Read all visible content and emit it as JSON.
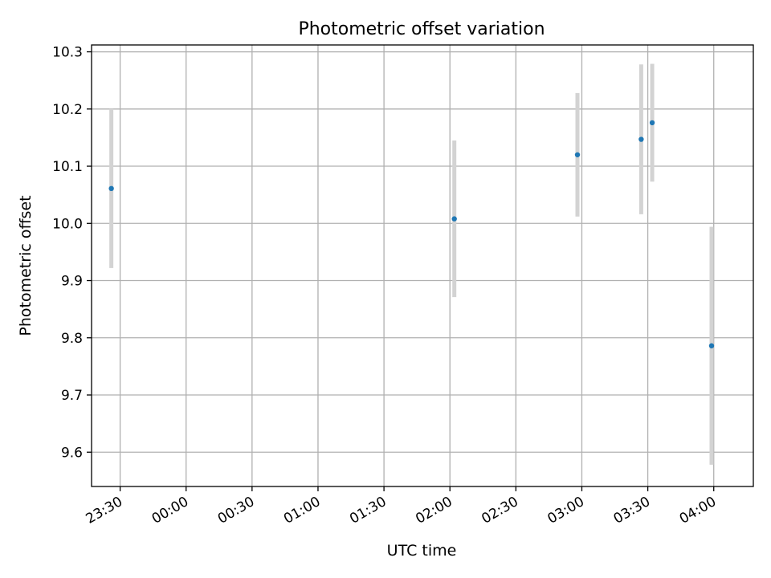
{
  "chart_data": {
    "type": "scatter",
    "title": "Photometric offset variation",
    "xlabel": "UTC time",
    "ylabel": "Photometric offset",
    "x_format": "time",
    "x_tick_labels": [
      "23:30",
      "00:00",
      "00:30",
      "01:00",
      "01:30",
      "02:00",
      "02:30",
      "03:00",
      "03:30",
      "04:00"
    ],
    "x_ticks": [
      "23:30",
      "00:00",
      "00:30",
      "01:00",
      "01:30",
      "02:00",
      "02:30",
      "03:00",
      "03:30",
      "04:00"
    ],
    "xlim": [
      "23:17",
      "04:18"
    ],
    "y_tick_labels": [
      "9.6",
      "9.7",
      "9.8",
      "9.9",
      "10.0",
      "10.1",
      "10.2",
      "10.3"
    ],
    "y_ticks": [
      9.6,
      9.7,
      9.8,
      9.9,
      10.0,
      10.1,
      10.2,
      10.3
    ],
    "ylim": [
      9.54,
      10.312
    ],
    "grid": true,
    "series": [
      {
        "points": [
          {
            "x": "23:26",
            "y": 10.061,
            "yerr": 0.139
          },
          {
            "x": "02:02",
            "y": 10.008,
            "yerr": 0.137
          },
          {
            "x": "02:58",
            "y": 10.12,
            "yerr": 0.108
          },
          {
            "x": "03:27",
            "y": 10.147,
            "yerr": 0.131
          },
          {
            "x": "03:32",
            "y": 10.176,
            "yerr": 0.103
          },
          {
            "x": "03:59",
            "y": 9.786,
            "yerr": 0.208
          }
        ]
      }
    ],
    "colors": {
      "marker": "#1f77b4",
      "errorbar": "#d3d3d3",
      "grid": "#b0b0b0",
      "axes": "#000000"
    }
  }
}
